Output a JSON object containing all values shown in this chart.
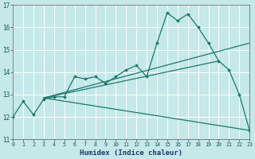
{
  "xlabel": "Humidex (Indice chaleur)",
  "background_color": "#c5e8e8",
  "grid_color": "#ffffff",
  "line_color": "#1a7a6a",
  "xlim": [
    0,
    23
  ],
  "ylim": [
    11,
    17
  ],
  "yticks": [
    11,
    12,
    13,
    14,
    15,
    16,
    17
  ],
  "xticks": [
    0,
    1,
    2,
    3,
    4,
    5,
    6,
    7,
    8,
    9,
    10,
    11,
    12,
    13,
    14,
    15,
    16,
    17,
    18,
    19,
    20,
    21,
    22,
    23
  ],
  "series1_x": [
    0,
    1,
    2,
    3,
    4,
    5,
    6,
    7,
    8,
    9,
    10,
    11,
    12,
    13,
    14,
    15,
    16,
    17,
    18,
    19,
    20,
    21,
    22,
    23
  ],
  "series1_y": [
    12.0,
    12.7,
    12.1,
    12.8,
    12.9,
    12.9,
    13.8,
    13.7,
    13.8,
    13.5,
    13.8,
    14.1,
    14.3,
    13.8,
    15.3,
    16.65,
    16.3,
    16.6,
    16.0,
    15.3,
    14.5,
    14.1,
    13.0,
    11.4
  ],
  "line2_x": [
    3.0,
    20.0
  ],
  "line2_y": [
    12.85,
    14.5
  ],
  "line3_x": [
    3.0,
    23.0
  ],
  "line3_y": [
    12.85,
    15.3
  ],
  "line4_x": [
    3.0,
    23.0
  ],
  "line4_y": [
    12.85,
    11.4
  ]
}
